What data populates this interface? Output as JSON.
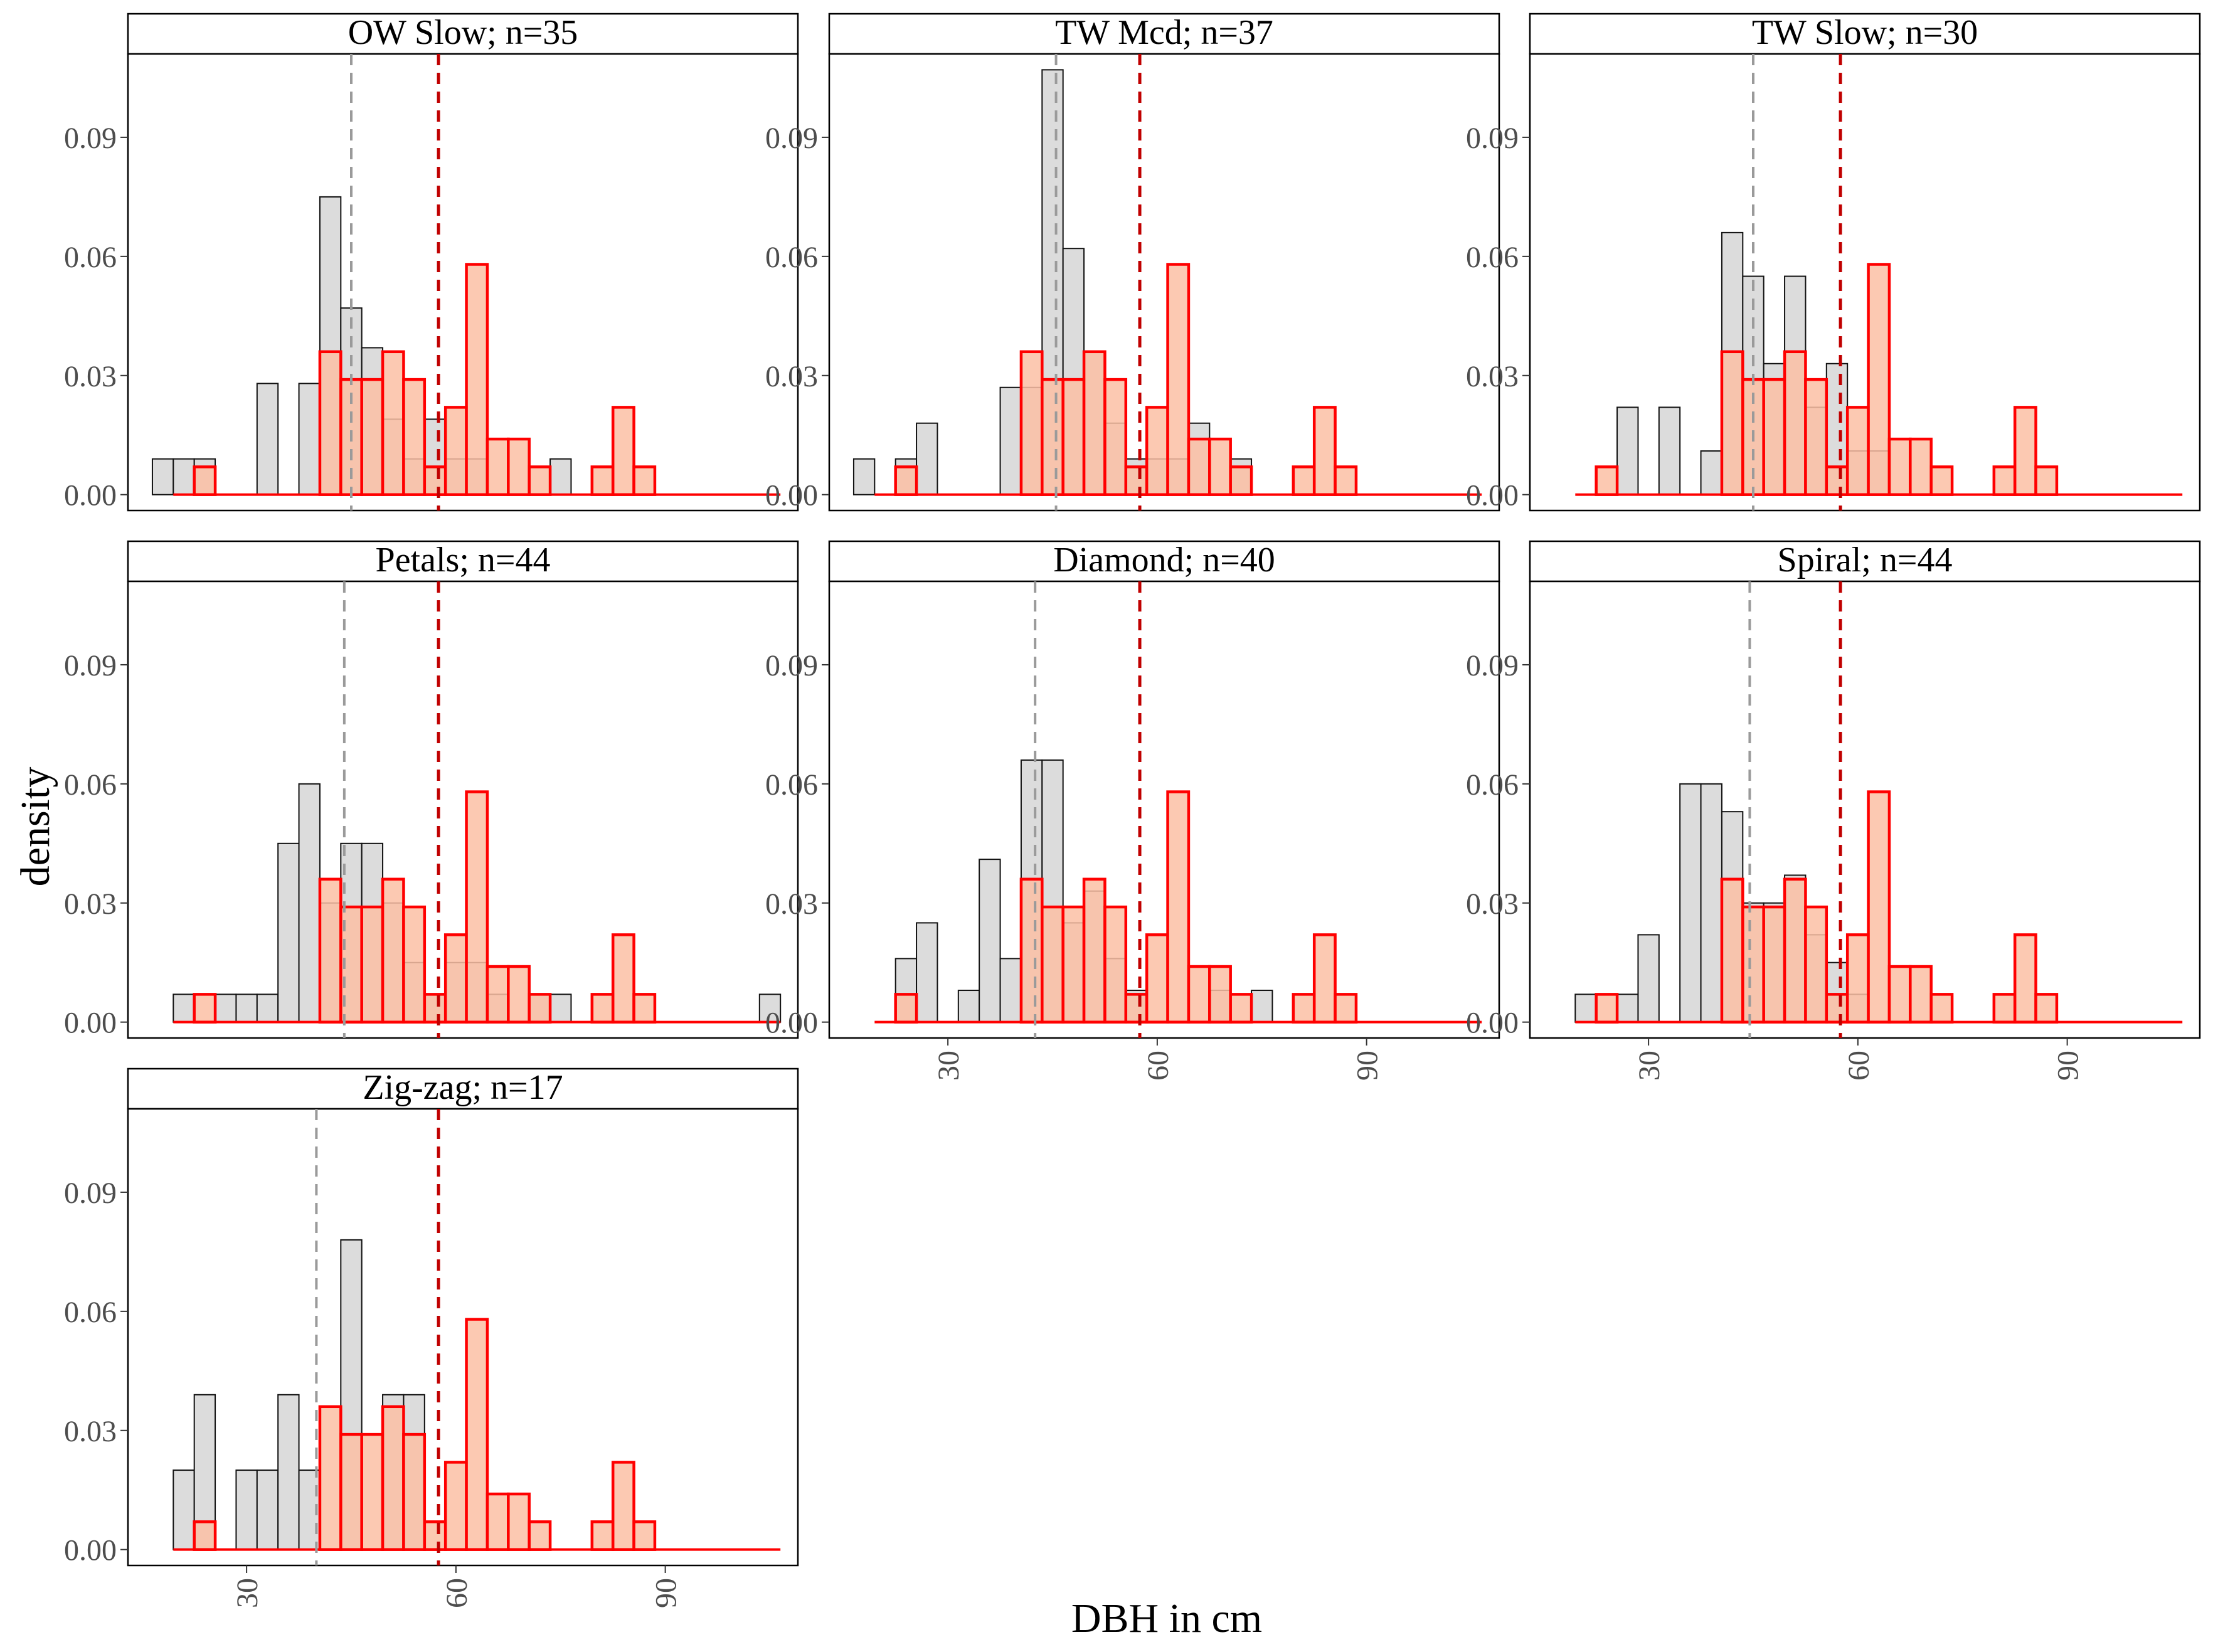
{
  "figure": {
    "ylabel": "density",
    "xlabel": "DBH in cm",
    "colors": {
      "grey_fill": "#dcdcdc",
      "grey_stroke": "#111111",
      "red_fill": "#fcc0a4",
      "red_stroke": "#ff0000",
      "grey_mean_line": "#9a9a9a",
      "red_mean_line": "#c00000"
    }
  },
  "chart_data": {
    "type": "bar",
    "subtype": "faceted overlaid density histograms",
    "title": "",
    "xlabel": "DBH in cm",
    "ylabel": "density",
    "xlim": [
      13,
      109
    ],
    "ylim": [
      -0.004,
      0.111
    ],
    "x_ticks": [
      30,
      60,
      90
    ],
    "y_ticks": [
      0.0,
      0.03,
      0.06,
      0.09
    ],
    "y_tick_labels": [
      "0.00",
      "0.03",
      "0.06",
      "0.09"
    ],
    "bin_width": 3,
    "layout": {
      "columns": 3,
      "rows": 3
    },
    "reference_mean": 57.5,
    "reference_bins": [
      [
        24,
        0.007
      ],
      [
        42,
        0.036
      ],
      [
        45,
        0.029
      ],
      [
        48,
        0.029
      ],
      [
        51,
        0.036
      ],
      [
        54,
        0.029
      ],
      [
        57,
        0.007
      ],
      [
        60,
        0.022
      ],
      [
        63,
        0.058
      ],
      [
        66,
        0.014
      ],
      [
        69,
        0.014
      ],
      [
        72,
        0.007
      ],
      [
        81,
        0.007
      ],
      [
        84,
        0.022
      ],
      [
        87,
        0.007
      ]
    ],
    "panels": [
      {
        "title": "OW Slow; n=35",
        "mean": 45,
        "show_x_axis": false,
        "bins": [
          [
            18,
            0.009
          ],
          [
            21,
            0.009
          ],
          [
            24,
            0.009
          ],
          [
            33,
            0.028
          ],
          [
            39,
            0.028
          ],
          [
            42,
            0.075
          ],
          [
            45,
            0.047
          ],
          [
            48,
            0.037
          ],
          [
            51,
            0.019
          ],
          [
            54,
            0.009
          ],
          [
            57,
            0.019
          ],
          [
            60,
            0.009
          ],
          [
            63,
            0.009
          ],
          [
            75,
            0.009
          ]
        ]
      },
      {
        "title": "TW Mcd; n=37",
        "mean": 45.5,
        "show_x_axis": false,
        "bins": [
          [
            18,
            0.009
          ],
          [
            24,
            0.009
          ],
          [
            27,
            0.018
          ],
          [
            39,
            0.027
          ],
          [
            42,
            0.027
          ],
          [
            45,
            0.107
          ],
          [
            48,
            0.062
          ],
          [
            51,
            0.036
          ],
          [
            54,
            0.018
          ],
          [
            57,
            0.009
          ],
          [
            60,
            0.009
          ],
          [
            63,
            0.009
          ],
          [
            66,
            0.018
          ],
          [
            72,
            0.009
          ]
        ]
      },
      {
        "title": "TW Slow; n=30",
        "mean": 45,
        "show_x_axis": false,
        "bins": [
          [
            27,
            0.022
          ],
          [
            33,
            0.022
          ],
          [
            39,
            0.011
          ],
          [
            42,
            0.066
          ],
          [
            45,
            0.055
          ],
          [
            48,
            0.033
          ],
          [
            51,
            0.055
          ],
          [
            54,
            0.022
          ],
          [
            57,
            0.033
          ],
          [
            60,
            0.011
          ],
          [
            63,
            0.011
          ]
        ]
      },
      {
        "title": "Petals; n=44",
        "mean": 44,
        "show_x_axis": false,
        "bins": [
          [
            21,
            0.007
          ],
          [
            27,
            0.007
          ],
          [
            30,
            0.007
          ],
          [
            33,
            0.007
          ],
          [
            36,
            0.045
          ],
          [
            39,
            0.06
          ],
          [
            42,
            0.03
          ],
          [
            45,
            0.045
          ],
          [
            48,
            0.045
          ],
          [
            51,
            0.03
          ],
          [
            54,
            0.015
          ],
          [
            57,
            0.007
          ],
          [
            60,
            0.015
          ],
          [
            63,
            0.015
          ],
          [
            66,
            0.007
          ],
          [
            72,
            0.007
          ],
          [
            75,
            0.007
          ],
          [
            105,
            0.007
          ]
        ]
      },
      {
        "title": "Diamond; n=40",
        "mean": 42.5,
        "show_x_axis": true,
        "bins": [
          [
            24,
            0.016
          ],
          [
            27,
            0.025
          ],
          [
            33,
            0.008
          ],
          [
            36,
            0.041
          ],
          [
            39,
            0.016
          ],
          [
            42,
            0.066
          ],
          [
            45,
            0.066
          ],
          [
            48,
            0.025
          ],
          [
            51,
            0.033
          ],
          [
            54,
            0.016
          ],
          [
            57,
            0.008
          ],
          [
            69,
            0.008
          ],
          [
            75,
            0.008
          ]
        ]
      },
      {
        "title": "Spiral; n=44",
        "mean": 44.5,
        "show_x_axis": true,
        "bins": [
          [
            21,
            0.007
          ],
          [
            27,
            0.007
          ],
          [
            30,
            0.022
          ],
          [
            36,
            0.06
          ],
          [
            39,
            0.06
          ],
          [
            42,
            0.053
          ],
          [
            45,
            0.03
          ],
          [
            48,
            0.03
          ],
          [
            51,
            0.037
          ],
          [
            54,
            0.022
          ],
          [
            57,
            0.015
          ],
          [
            60,
            0.007
          ]
        ]
      },
      {
        "title": "Zig-zag; n=17",
        "mean": 40,
        "show_x_axis": true,
        "bins": [
          [
            21,
            0.02
          ],
          [
            24,
            0.039
          ],
          [
            30,
            0.02
          ],
          [
            33,
            0.02
          ],
          [
            36,
            0.039
          ],
          [
            39,
            0.02
          ],
          [
            45,
            0.078
          ],
          [
            51,
            0.039
          ],
          [
            54,
            0.039
          ]
        ]
      }
    ]
  }
}
